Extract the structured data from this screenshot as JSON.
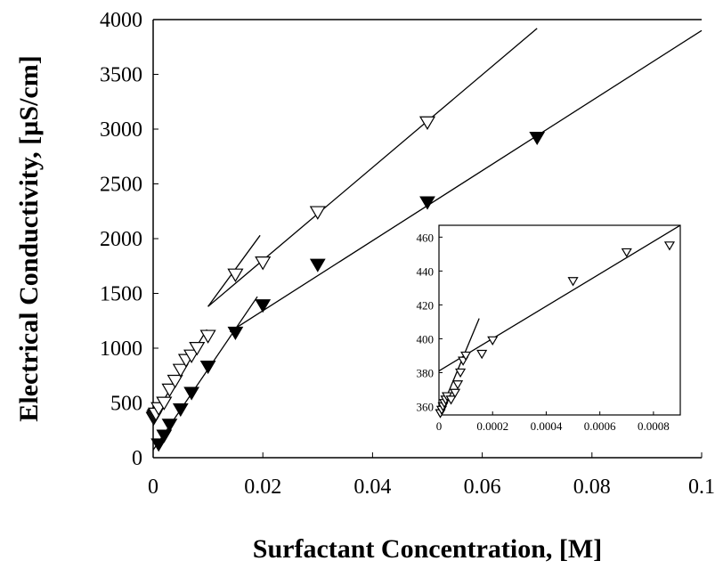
{
  "chart_data": [
    {
      "type": "scatter",
      "title": "",
      "xlabel": "Surfactant Concentration, [M]",
      "ylabel": "Electrical Conductivity, [µS/cm]",
      "xlim": [
        0,
        0.1
      ],
      "ylim": [
        0,
        4000
      ],
      "x_ticks": [
        "0",
        "0.02",
        "0.04",
        "0.06",
        "0.08",
        "0.1"
      ],
      "y_ticks": [
        "0",
        "500",
        "1000",
        "1500",
        "2000",
        "2500",
        "3000",
        "3500",
        "4000"
      ],
      "grid": false,
      "legend": "none",
      "series": [
        {
          "marker": "open-triangle-down",
          "points": [
            [
              0.0001,
              360
            ],
            [
              0.0002,
              370
            ],
            [
              0.0003,
              380
            ],
            [
              0.0004,
              390
            ],
            [
              0.0005,
              400
            ],
            [
              0.001,
              450
            ],
            [
              0.002,
              500
            ],
            [
              0.003,
              620
            ],
            [
              0.004,
              700
            ],
            [
              0.005,
              800
            ],
            [
              0.006,
              890
            ],
            [
              0.007,
              930
            ],
            [
              0.008,
              1000
            ],
            [
              0.01,
              1110
            ],
            [
              0.015,
              1670
            ],
            [
              0.02,
              1780
            ],
            [
              0.03,
              2240
            ],
            [
              0.05,
              3060
            ]
          ]
        },
        {
          "marker": "filled-triangle-down",
          "points": [
            [
              0.001,
              120
            ],
            [
              0.002,
              200
            ],
            [
              0.003,
              300
            ],
            [
              0.005,
              440
            ],
            [
              0.007,
              590
            ],
            [
              0.01,
              830
            ],
            [
              0.015,
              1140
            ],
            [
              0.02,
              1390
            ],
            [
              0.03,
              1760
            ],
            [
              0.05,
              2330
            ],
            [
              0.07,
              2920
            ]
          ]
        }
      ],
      "fit_lines": [
        {
          "from": [
            0,
            370
          ],
          "to": [
            0.0098,
            1170
          ]
        },
        {
          "from": [
            0.01,
            1380
          ],
          "to": [
            0.07,
            3920
          ]
        },
        {
          "from": [
            0.01,
            1380
          ],
          "to": [
            0.0195,
            2030
          ]
        },
        {
          "from": [
            0,
            70
          ],
          "to": [
            0.019,
            1470
          ]
        },
        {
          "from": [
            0.014,
            1150
          ],
          "to": [
            0.1,
            3900
          ]
        }
      ]
    },
    {
      "type": "scatter",
      "inset": true,
      "title": "",
      "xlabel": "",
      "ylabel": "",
      "xlim": [
        0,
        0.0009
      ],
      "ylim": [
        355,
        467
      ],
      "x_ticks": [
        "0",
        "0.0002",
        "0.0004",
        "0.0006",
        "0.0008"
      ],
      "y_ticks": [
        "360",
        "380",
        "400",
        "420",
        "440",
        "460"
      ],
      "grid": false,
      "legend": "none",
      "series": [
        {
          "marker": "open-triangle-down",
          "points": [
            [
              5e-06,
              356
            ],
            [
              1e-05,
              358
            ],
            [
              1.5e-05,
              360
            ],
            [
              2e-05,
              362
            ],
            [
              2.5e-05,
              364
            ],
            [
              3e-05,
              366
            ],
            [
              4.5e-05,
              364
            ],
            [
              6e-05,
              368
            ],
            [
              7e-05,
              373
            ],
            [
              8e-05,
              380
            ],
            [
              9e-05,
              387
            ],
            [
              0.0001,
              390
            ],
            [
              0.00016,
              391
            ],
            [
              0.0002,
              399
            ],
            [
              0.0005,
              434
            ],
            [
              0.0007,
              451
            ],
            [
              0.00086,
              455
            ]
          ]
        }
      ],
      "fit_lines": [
        {
          "from": [
            0,
            355
          ],
          "to": [
            0.00015,
            412
          ]
        },
        {
          "from": [
            0,
            381
          ],
          "to": [
            0.0009,
            467
          ]
        }
      ]
    }
  ]
}
